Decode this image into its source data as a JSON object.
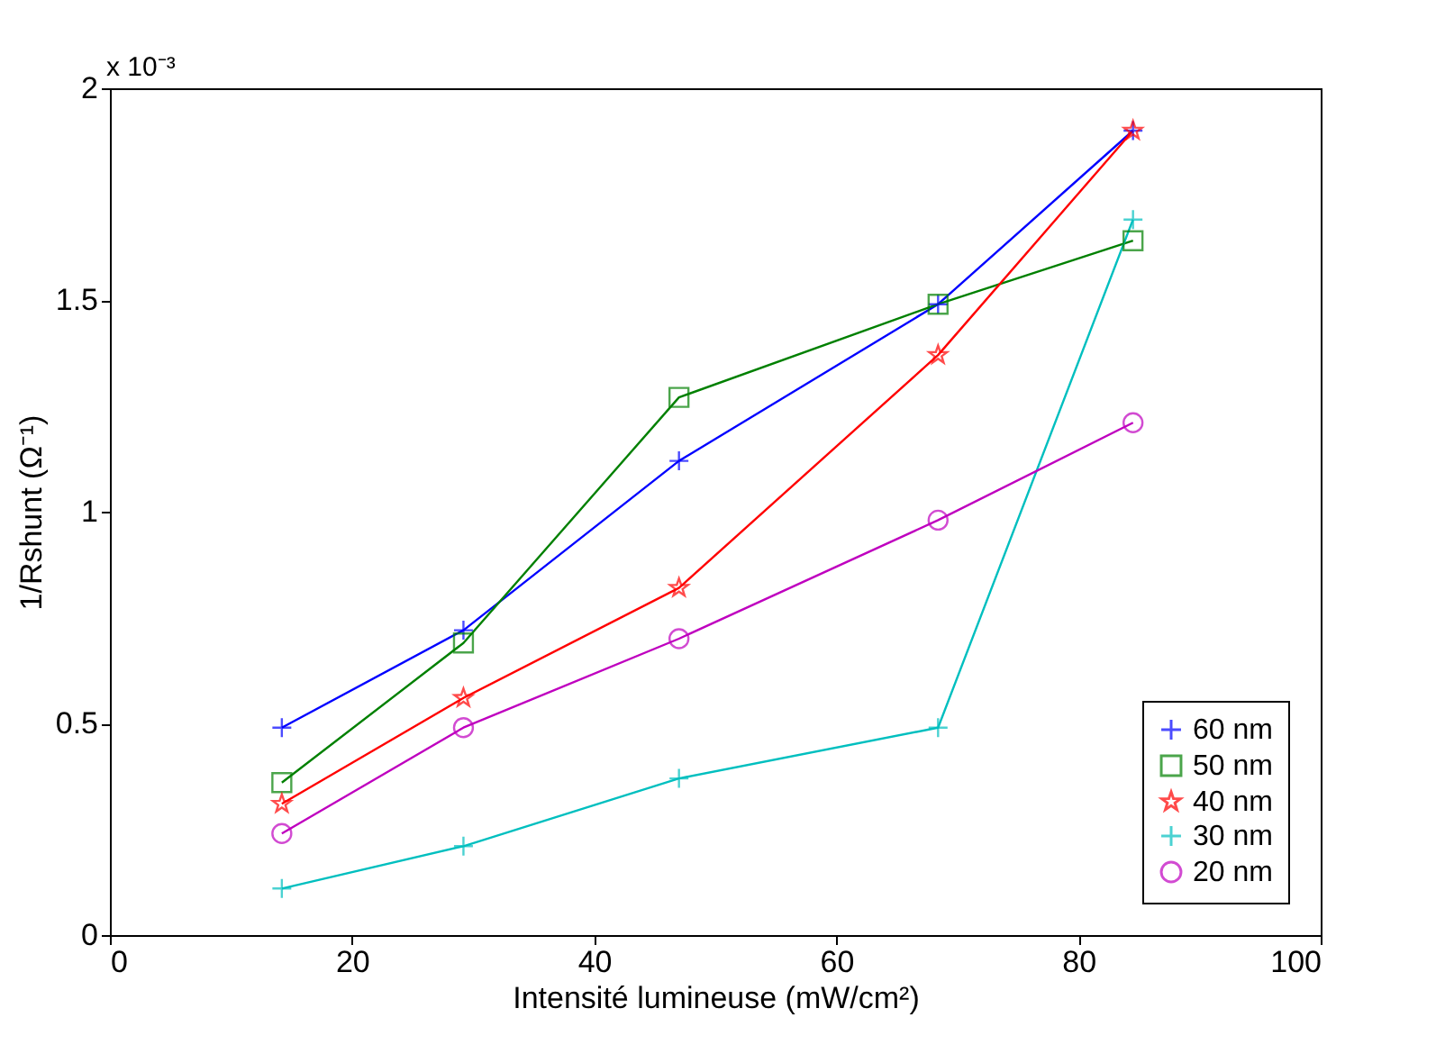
{
  "chart_data": {
    "type": "line",
    "xlabel": "Intensité lumineuse (mW/cm²)",
    "ylabel": "1/Rshunt (Ω⁻¹)",
    "annotations": [
      "x 10⁻³"
    ],
    "x": [
      14.2,
      29.2,
      47,
      68.4,
      84.5
    ],
    "xlim": [
      0,
      100
    ],
    "xticks": [
      0,
      20,
      40,
      60,
      80,
      100
    ],
    "ylim": [
      0,
      2
    ],
    "yticks": [
      0,
      0.5,
      1,
      1.5,
      2
    ],
    "grid": false,
    "legend": "bottom right",
    "series": [
      {
        "name": "60 nm",
        "color": "#0000ff",
        "marker": "cross",
        "values": [
          0.49,
          0.72,
          1.12,
          1.49,
          1.9
        ]
      },
      {
        "name": "50 nm",
        "color": "#008000",
        "marker": "square",
        "values": [
          0.36,
          0.69,
          1.27,
          1.49,
          1.64
        ]
      },
      {
        "name": "40 nm",
        "color": "#ff0000",
        "marker": "star",
        "values": [
          0.31,
          0.56,
          0.82,
          1.37,
          1.9
        ]
      },
      {
        "name": "30 nm",
        "color": "#00bfbf",
        "marker": "cross",
        "values": [
          0.11,
          0.21,
          0.37,
          0.49,
          1.69
        ]
      },
      {
        "name": "20 nm",
        "color": "#bf00bf",
        "marker": "circle",
        "values": [
          0.24,
          0.49,
          0.7,
          0.98,
          1.21
        ]
      }
    ]
  }
}
